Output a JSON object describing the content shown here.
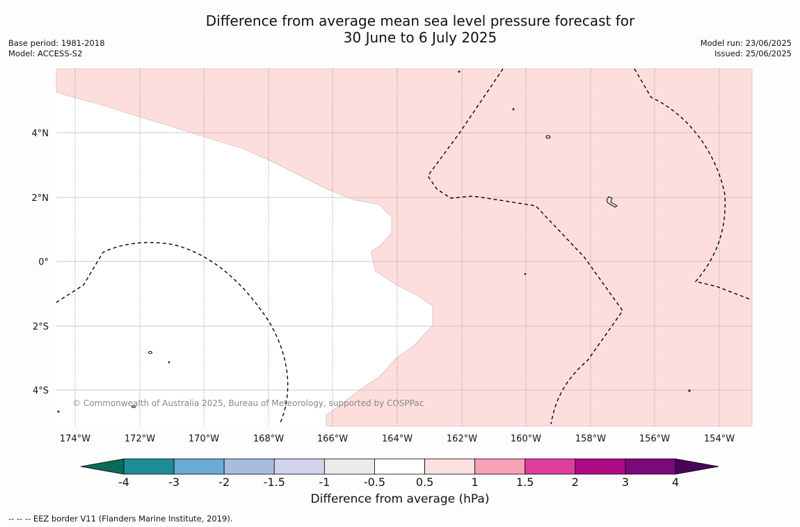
{
  "title_line1": "Difference from average mean sea level pressure forecast for",
  "title_line2": "30 June to 6 July 2025",
  "meta_left": [
    "Base period: 1981-2018",
    "Model: ACCESS-S2"
  ],
  "meta_right": [
    "Model run: 23/06/2025",
    "Issued: 25/06/2025"
  ],
  "map": {
    "lon_labels": [
      "174°W",
      "172°W",
      "170°W",
      "168°W",
      "166°W",
      "164°W",
      "162°W",
      "160°W",
      "158°W",
      "156°W",
      "154°W"
    ],
    "lat_labels": [
      "4°N",
      "2°N",
      "0°",
      "2°S",
      "4°S"
    ],
    "copyright": "© Commonwealth of Australia 2025, Bureau of Meteorology, supported by COSPPac",
    "positive_anomaly_color": "#fddedd",
    "neutral_color": "#ffffff"
  },
  "colorbar": {
    "ticks": [
      "-4",
      "-3",
      "-2",
      "-1.5",
      "-1",
      "-0.5",
      "0.5",
      "1",
      "1.5",
      "2",
      "3",
      "4"
    ],
    "colors": [
      "#0b6a5a",
      "#1f8c97",
      "#6aaad3",
      "#a7bde0",
      "#d1d3ea",
      "#ebebeb",
      "#ffffff",
      "#fde1e1",
      "#f8a0b8",
      "#de3d9d",
      "#ad0b86",
      "#7a0a7c",
      "#4b0358"
    ],
    "label": "Difference from average (hPa)"
  },
  "footer": "-- -- -- EEZ border V11 (Flanders Marine Institute, 2019)."
}
